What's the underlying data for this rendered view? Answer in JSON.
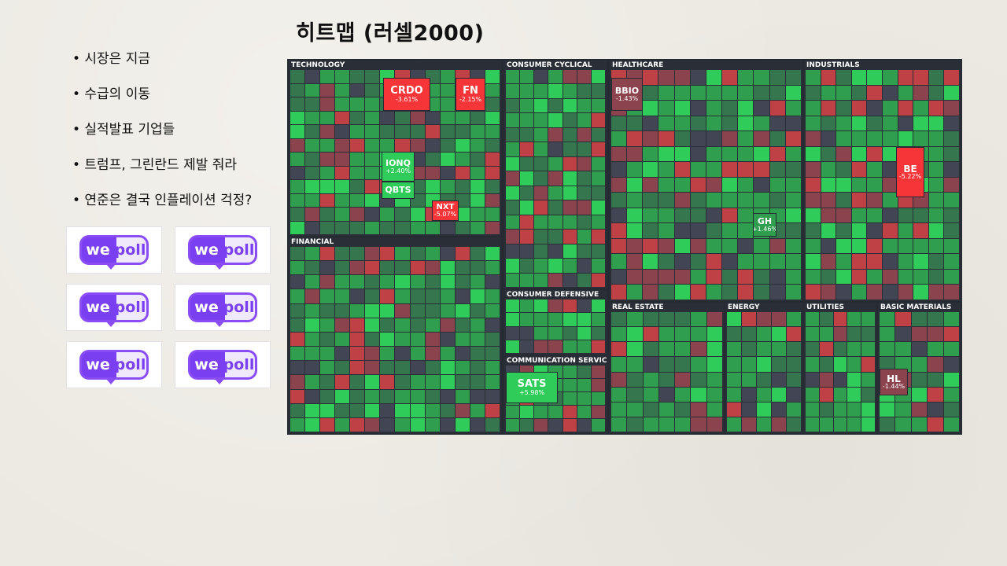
{
  "slide": {
    "title": "히트맵 (러셀2000)",
    "bullets": [
      "시장은 지금",
      "수급의 이동",
      "실적발표 기업들",
      "트럼프, 그린란드 제발 줘라",
      "연준은 결국 인플레이션 걱정?"
    ],
    "logo": {
      "left": "we",
      "right": "poll",
      "count": 6
    }
  },
  "colors": {
    "bright_green": "#30cc5a",
    "green": "#2f9e4f",
    "dark_green": "#35764e",
    "neutral": "#414554",
    "dark_red": "#8b444e",
    "red": "#bf4045",
    "bright_red": "#f63538"
  },
  "heatmap": {
    "sectors": [
      {
        "name": "TECHNOLOGY"
      },
      {
        "name": "FINANCIAL"
      },
      {
        "name": "CONSUMER CYCLICAL"
      },
      {
        "name": "CONSUMER DEFENSIVE"
      },
      {
        "name": "COMMUNICATION SERVICES"
      },
      {
        "name": "HEALTHCARE"
      },
      {
        "name": "REAL ESTATE"
      },
      {
        "name": "ENERGY"
      },
      {
        "name": "INDUSTRIALS"
      },
      {
        "name": "UTILITIES"
      },
      {
        "name": "BASIC MATERIALS"
      }
    ],
    "tiles": [
      {
        "ticker": "CRDO",
        "change": "-3.61%",
        "color": "#f63538"
      },
      {
        "ticker": "FN",
        "change": "-2.15%",
        "color": "#f63538"
      },
      {
        "ticker": "IONQ",
        "change": "+2.40%",
        "color": "#30cc5a"
      },
      {
        "ticker": "QBTS",
        "change": "",
        "color": "#30cc5a"
      },
      {
        "ticker": "NXT",
        "change": "-5.07%",
        "color": "#f63538"
      },
      {
        "ticker": "SATS",
        "change": "+5.98%",
        "color": "#30cc5a"
      },
      {
        "ticker": "BE",
        "change": "-5.22%",
        "color": "#f63538"
      },
      {
        "ticker": "BBIO",
        "change": "-1.43%",
        "color": "#8b444e"
      },
      {
        "ticker": "HL",
        "change": "-1.44%",
        "color": "#8b444e"
      },
      {
        "ticker": "GH",
        "change": "+1.46%",
        "color": "#2f9e4f"
      }
    ]
  }
}
